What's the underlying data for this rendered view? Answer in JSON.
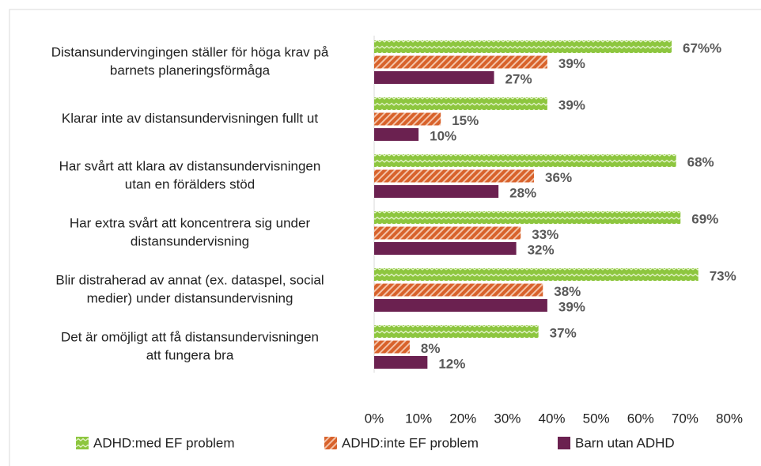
{
  "chart_data": {
    "type": "bar",
    "orientation": "horizontal",
    "categories": [
      [
        "Distansundervingingen ställer för höga krav på",
        "barnets planeringsförmåga"
      ],
      [
        "Klarar inte av distansundervisningen fullt ut"
      ],
      [
        "Har svårt att klara av distansundervisningen",
        "utan en förälders stöd"
      ],
      [
        "Har extra svårt att koncentrera sig under",
        "distansundervisning"
      ],
      [
        "Blir distraherad av annat (ex. dataspel, social",
        "medier) under distansundervisning"
      ],
      [
        "Det är omöjligt att få distansundervisningen",
        "att fungera bra"
      ]
    ],
    "series": [
      {
        "name": "ADHD:med EF problem",
        "color": "#8dc63f",
        "pattern": "zigzag",
        "values": [
          67,
          39,
          68,
          69,
          73,
          37
        ],
        "value_labels": [
          "67%%",
          "39%",
          "68%",
          "69%",
          "73%",
          "37%"
        ]
      },
      {
        "name": "ADHD:inte EF problem",
        "color": "#d8622b",
        "pattern": "diagonal",
        "values": [
          39,
          15,
          36,
          33,
          38,
          8
        ],
        "value_labels": [
          "39%",
          "15%",
          "36%",
          "33%",
          "38%",
          "8%"
        ]
      },
      {
        "name": "Barn utan ADHD",
        "color": "#6b2150",
        "pattern": "solid",
        "values": [
          27,
          10,
          28,
          32,
          39,
          12
        ],
        "value_labels": [
          "27%",
          "10%",
          "28%",
          "32%",
          "39%",
          "12%"
        ]
      }
    ],
    "xlim": [
      0,
      80
    ],
    "xticks": [
      {
        "value": 0,
        "label": "0%"
      },
      {
        "value": 10,
        "label": "10%"
      },
      {
        "value": 20,
        "label": "20%"
      },
      {
        "value": 30,
        "label": "30%"
      },
      {
        "value": 40,
        "label": "40%"
      },
      {
        "value": 50,
        "label": "50%"
      },
      {
        "value": 60,
        "label": "60%"
      },
      {
        "value": 70,
        "label": "70%"
      },
      {
        "value": 80,
        "label": "80%"
      }
    ],
    "legend": "bottom"
  }
}
